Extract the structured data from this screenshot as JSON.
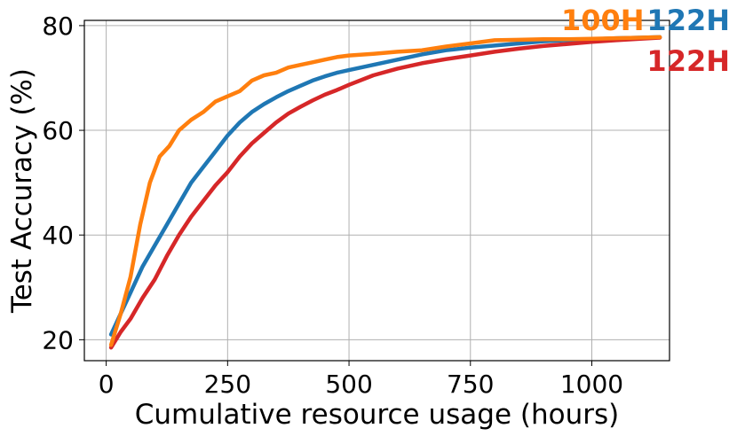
{
  "chart_data": {
    "type": "line",
    "title": "",
    "xlabel": "Cumulative resource usage (hours)",
    "ylabel": "Test Accuracy (%)",
    "xlim": [
      -45,
      1160
    ],
    "ylim": [
      16,
      81
    ],
    "xticks": [
      0,
      250,
      500,
      750,
      1000
    ],
    "yticks": [
      20,
      40,
      60,
      80
    ],
    "grid": true,
    "series": [
      {
        "color": "#ff7f0e",
        "end_label": "100H",
        "points": [
          [
            10,
            19
          ],
          [
            30,
            25
          ],
          [
            50,
            32
          ],
          [
            70,
            42
          ],
          [
            90,
            50
          ],
          [
            110,
            55
          ],
          [
            130,
            57
          ],
          [
            150,
            60
          ],
          [
            175,
            62
          ],
          [
            200,
            63.5
          ],
          [
            225,
            65.5
          ],
          [
            250,
            66.5
          ],
          [
            275,
            67.5
          ],
          [
            300,
            69.5
          ],
          [
            325,
            70.5
          ],
          [
            350,
            71
          ],
          [
            375,
            72
          ],
          [
            400,
            72.5
          ],
          [
            425,
            73
          ],
          [
            450,
            73.5
          ],
          [
            475,
            74
          ],
          [
            500,
            74.3
          ],
          [
            550,
            74.6
          ],
          [
            600,
            75
          ],
          [
            650,
            75.3
          ],
          [
            700,
            76
          ],
          [
            750,
            76.6
          ],
          [
            800,
            77.2
          ],
          [
            850,
            77.3
          ],
          [
            900,
            77.4
          ],
          [
            950,
            77.4
          ],
          [
            1000,
            77.5
          ],
          [
            1050,
            77.6
          ],
          [
            1100,
            77.7
          ],
          [
            1140,
            77.8
          ]
        ]
      },
      {
        "color": "#1f77b4",
        "end_label": "122H",
        "points": [
          [
            10,
            21
          ],
          [
            30,
            25
          ],
          [
            50,
            29
          ],
          [
            75,
            34
          ],
          [
            100,
            38
          ],
          [
            125,
            42
          ],
          [
            150,
            46
          ],
          [
            175,
            50
          ],
          [
            200,
            53
          ],
          [
            225,
            56
          ],
          [
            250,
            59
          ],
          [
            275,
            61.5
          ],
          [
            300,
            63.5
          ],
          [
            325,
            65
          ],
          [
            350,
            66.3
          ],
          [
            375,
            67.5
          ],
          [
            400,
            68.5
          ],
          [
            425,
            69.5
          ],
          [
            450,
            70.3
          ],
          [
            475,
            71
          ],
          [
            500,
            71.5
          ],
          [
            550,
            72.5
          ],
          [
            600,
            73.5
          ],
          [
            650,
            74.5
          ],
          [
            700,
            75.3
          ],
          [
            750,
            75.8
          ],
          [
            800,
            76.2
          ],
          [
            850,
            76.6
          ],
          [
            900,
            77
          ],
          [
            950,
            77.2
          ],
          [
            1000,
            77.4
          ],
          [
            1050,
            77.6
          ],
          [
            1100,
            77.7
          ],
          [
            1140,
            77.8
          ]
        ]
      },
      {
        "color": "#d62728",
        "end_label": "122H",
        "points": [
          [
            10,
            18.5
          ],
          [
            30,
            21.5
          ],
          [
            50,
            24
          ],
          [
            75,
            28
          ],
          [
            100,
            31.5
          ],
          [
            125,
            36
          ],
          [
            150,
            40
          ],
          [
            175,
            43.5
          ],
          [
            200,
            46.5
          ],
          [
            225,
            49.5
          ],
          [
            250,
            52
          ],
          [
            275,
            55
          ],
          [
            300,
            57.5
          ],
          [
            325,
            59.5
          ],
          [
            350,
            61.5
          ],
          [
            375,
            63.2
          ],
          [
            400,
            64.5
          ],
          [
            425,
            65.7
          ],
          [
            450,
            66.8
          ],
          [
            475,
            67.7
          ],
          [
            500,
            68.7
          ],
          [
            550,
            70.5
          ],
          [
            600,
            71.8
          ],
          [
            650,
            72.8
          ],
          [
            700,
            73.6
          ],
          [
            750,
            74.3
          ],
          [
            800,
            75
          ],
          [
            850,
            75.6
          ],
          [
            900,
            76.1
          ],
          [
            950,
            76.5
          ],
          [
            1000,
            76.9
          ],
          [
            1050,
            77.2
          ],
          [
            1100,
            77.5
          ],
          [
            1140,
            77.7
          ]
        ]
      }
    ]
  }
}
